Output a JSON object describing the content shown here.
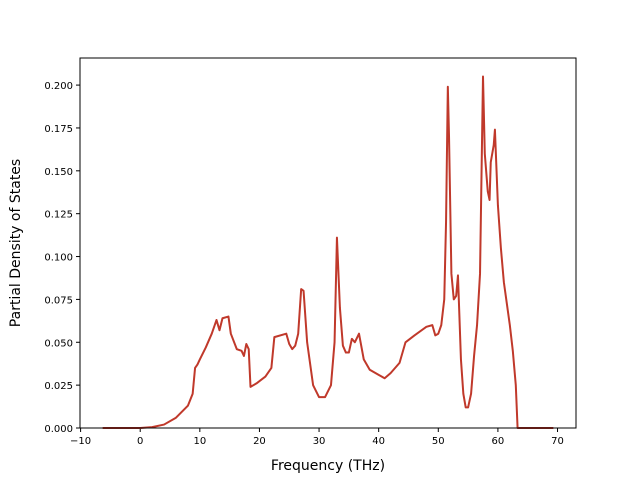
{
  "chart_data": {
    "type": "line",
    "x_label": "Frequency (THz)",
    "y_label": "Partial Density of States",
    "color": "#c0392b",
    "x": [
      -6.3,
      0,
      2,
      4,
      6,
      8,
      8.8,
      9.2,
      9.6,
      10,
      11,
      12,
      12.8,
      13.3,
      13.8,
      14.8,
      15.2,
      16.2,
      17,
      17.4,
      17.8,
      18.2,
      18.5,
      19.5,
      21,
      22,
      22.5,
      24.5,
      25,
      25.5,
      26,
      26.5,
      27,
      27.4,
      28,
      29,
      30,
      31,
      32,
      32.6,
      33,
      33.5,
      34,
      34.5,
      35,
      35.5,
      36,
      36.7,
      37.5,
      38.5,
      40,
      41,
      42,
      43.5,
      44.5,
      46,
      48,
      49,
      49.5,
      50,
      50.5,
      51,
      51.3,
      51.6,
      51.8,
      52.2,
      52.6,
      53,
      53.3,
      53.8,
      54.2,
      54.6,
      55,
      55.5,
      56,
      56.5,
      57,
      57.5,
      57.8,
      58.3,
      58.6,
      58.8,
      59.3,
      59.5,
      60,
      60.5,
      61,
      62,
      62.5,
      63,
      63.3,
      65,
      69.3
    ],
    "values": [
      0,
      0,
      0.0005,
      0.002,
      0.006,
      0.013,
      0.02,
      0.035,
      0.037,
      0.04,
      0.047,
      0.055,
      0.063,
      0.057,
      0.064,
      0.065,
      0.055,
      0.046,
      0.045,
      0.042,
      0.049,
      0.046,
      0.024,
      0.026,
      0.03,
      0.035,
      0.053,
      0.055,
      0.049,
      0.046,
      0.048,
      0.055,
      0.081,
      0.08,
      0.05,
      0.025,
      0.018,
      0.018,
      0.025,
      0.05,
      0.111,
      0.07,
      0.048,
      0.044,
      0.044,
      0.052,
      0.05,
      0.055,
      0.04,
      0.034,
      0.031,
      0.029,
      0.032,
      0.038,
      0.05,
      0.054,
      0.059,
      0.06,
      0.054,
      0.055,
      0.06,
      0.075,
      0.12,
      0.199,
      0.17,
      0.09,
      0.075,
      0.077,
      0.089,
      0.04,
      0.02,
      0.012,
      0.012,
      0.02,
      0.042,
      0.06,
      0.09,
      0.205,
      0.16,
      0.138,
      0.133,
      0.155,
      0.165,
      0.174,
      0.13,
      0.105,
      0.085,
      0.06,
      0.045,
      0.025,
      0,
      0,
      0
    ],
    "xlim": [
      -10.1,
      73.1
    ],
    "xticks": [
      {
        "value": -10,
        "label": "−10"
      },
      0,
      10,
      20,
      30,
      40,
      50,
      60,
      70
    ],
    "ylim": [
      0,
      0.2158
    ],
    "yticks": [
      {
        "value": 0,
        "label": "0.000"
      },
      {
        "value": 0.025,
        "label": "0.025"
      },
      {
        "value": 0.05,
        "label": "0.050"
      },
      {
        "value": 0.075,
        "label": "0.075"
      },
      {
        "value": 0.1,
        "label": "0.100"
      },
      {
        "value": 0.125,
        "label": "0.125"
      },
      {
        "value": 0.15,
        "label": "0.150"
      },
      {
        "value": 0.175,
        "label": "0.175"
      },
      {
        "value": 0.2,
        "label": "0.200"
      }
    ]
  }
}
